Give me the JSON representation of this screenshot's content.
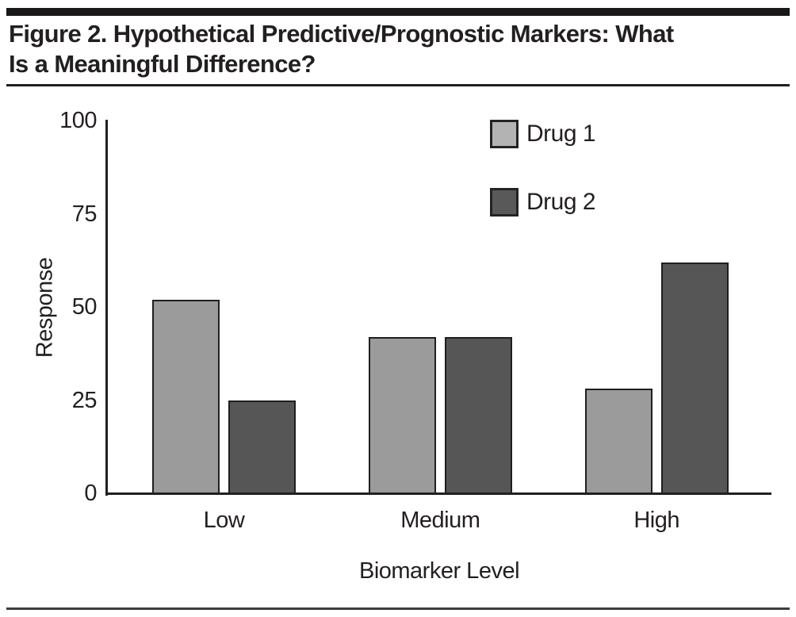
{
  "page": {
    "background_color": "#ffffff",
    "text_color": "#231f20",
    "top_bar_color": "#1a1718",
    "rule_color": "#231f20",
    "bottom_rule_color": "#3f3b3c"
  },
  "header": {
    "title_line1": "Figure 2. Hypothetical Predictive/Prognostic Markers: What",
    "title_line2": "Is a Meaningful Difference?"
  },
  "chart_data": {
    "type": "bar",
    "title": "Figure 2. Hypothetical Predictive/Prognostic Markers: What Is a Meaningful Difference?",
    "categories": [
      "Low",
      "Medium",
      "High"
    ],
    "series": [
      {
        "name": "Drug 1",
        "values": [
          52,
          42,
          28
        ],
        "fill": "#9b9b9b",
        "legend_fill": "#b3b3b3"
      },
      {
        "name": "Drug 2",
        "values": [
          25,
          42,
          62
        ],
        "fill": "#565656",
        "legend_fill": "#595959"
      }
    ],
    "xlabel": "Biomarker Level",
    "ylabel": "Response",
    "ylim": [
      0,
      100
    ],
    "yticks": [
      0,
      25,
      50,
      75,
      100
    ],
    "grid": false,
    "legend_position": "inside-top-right",
    "bar_border_color": "#1f1f1f",
    "axis_color": "#231f20"
  }
}
